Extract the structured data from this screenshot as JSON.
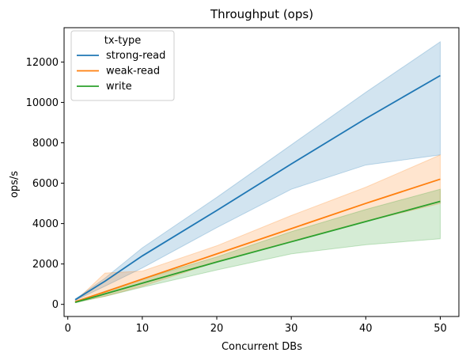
{
  "chart_data": {
    "type": "line",
    "title": "Throughput (ops)",
    "xlabel": "Concurrent DBs",
    "ylabel": "ops/s",
    "xlim": [
      -0.5,
      52.5
    ],
    "ylim": [
      -600,
      13700
    ],
    "xticks": [
      0,
      10,
      20,
      30,
      40,
      50
    ],
    "yticks": [
      0,
      2000,
      4000,
      6000,
      8000,
      10000,
      12000
    ],
    "grid": false,
    "legend": {
      "title": "tx-type",
      "placement": "top-left"
    },
    "series": [
      {
        "name": "strong-read",
        "color": "#1f77b4",
        "x": [
          1,
          5,
          10,
          20,
          30,
          40,
          50
        ],
        "y": [
          230,
          1150,
          2400,
          4650,
          6950,
          9200,
          11330
        ],
        "ci_lower": [
          200,
          900,
          1800,
          3800,
          5700,
          6900,
          7400
        ],
        "ci_upper": [
          260,
          1300,
          2800,
          5300,
          7900,
          10500,
          13000
        ]
      },
      {
        "name": "weak-read",
        "color": "#ff7f0e",
        "x": [
          1,
          5,
          10,
          20,
          30,
          40,
          50
        ],
        "y": [
          130,
          620,
          1250,
          2500,
          3750,
          5000,
          6200
        ],
        "ci_lower": [
          100,
          400,
          900,
          2100,
          3100,
          4100,
          5000
        ],
        "ci_upper": [
          160,
          1550,
          1650,
          2900,
          4400,
          5800,
          7400
        ]
      },
      {
        "name": "write",
        "color": "#2ca02c",
        "x": [
          1,
          5,
          10,
          20,
          30,
          40,
          50
        ],
        "y": [
          100,
          520,
          1050,
          2100,
          3100,
          4100,
          5100
        ],
        "ci_lower": [
          80,
          400,
          850,
          1700,
          2500,
          2950,
          3250
        ],
        "ci_upper": [
          130,
          650,
          1250,
          2350,
          3600,
          4700,
          5700
        ]
      }
    ]
  }
}
